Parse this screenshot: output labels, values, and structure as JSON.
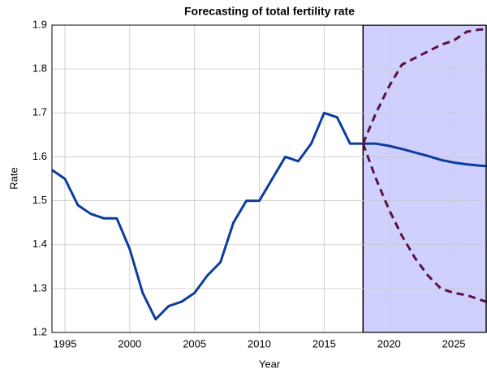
{
  "chart_data": {
    "type": "line",
    "title": "Forecasting of total fertility rate",
    "xlabel": "Year",
    "ylabel": "Rate",
    "xlim": [
      1994,
      2027.5
    ],
    "xticks": [
      1995,
      2000,
      2005,
      2010,
      2015,
      2020,
      2025
    ],
    "ylim": [
      1.2,
      1.9
    ],
    "yticks": [
      1.2,
      1.3,
      1.4,
      1.5,
      1.6,
      1.7,
      1.8,
      1.9
    ],
    "grid": true,
    "forecast_region": {
      "xlim": [
        2018,
        2027.5
      ],
      "color": "#d0d0ff"
    },
    "series": [
      {
        "color": "#0a3d9e",
        "dash": false,
        "x": [
          1994,
          1995,
          1996,
          1997,
          1998,
          1999,
          2000,
          2001,
          2002,
          2003,
          2004,
          2005,
          2006,
          2007,
          2008,
          2009,
          2010,
          2011,
          2012,
          2013,
          2014,
          2015,
          2016,
          2017,
          2018,
          2019,
          2020,
          2021,
          2022,
          2023,
          2024,
          2025,
          2026,
          2027,
          2028
        ],
        "values": [
          1.57,
          1.55,
          1.49,
          1.47,
          1.46,
          1.46,
          1.39,
          1.29,
          1.23,
          1.26,
          1.27,
          1.29,
          1.33,
          1.36,
          1.45,
          1.5,
          1.5,
          1.55,
          1.6,
          1.59,
          1.63,
          1.7,
          1.69,
          1.63,
          1.63,
          1.63,
          1.625,
          1.618,
          1.61,
          1.602,
          1.593,
          1.587,
          1.583,
          1.58,
          1.578
        ]
      },
      {
        "color": "#5a1040",
        "dash": true,
        "x": [
          2018,
          2019,
          2020,
          2021,
          2022,
          2023,
          2024,
          2025,
          2026,
          2027,
          2028
        ],
        "values": [
          1.63,
          1.7,
          1.76,
          1.81,
          1.825,
          1.84,
          1.855,
          1.865,
          1.885,
          1.89,
          1.89
        ]
      },
      {
        "color": "#5a1040",
        "dash": true,
        "x": [
          2018,
          2019,
          2020,
          2021,
          2022,
          2023,
          2024,
          2025,
          2026,
          2027,
          2028
        ],
        "values": [
          1.63,
          1.55,
          1.48,
          1.42,
          1.37,
          1.33,
          1.3,
          1.29,
          1.285,
          1.275,
          1.265
        ]
      }
    ]
  }
}
